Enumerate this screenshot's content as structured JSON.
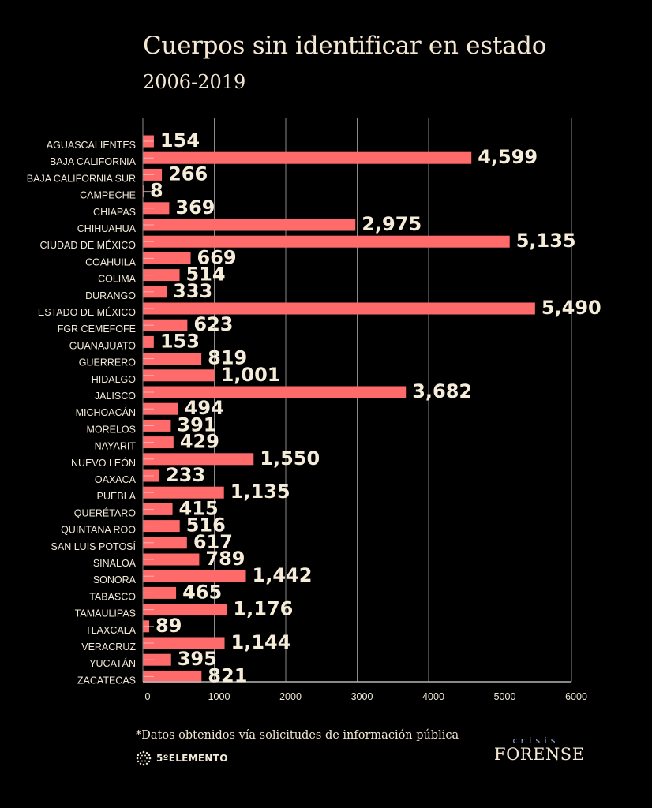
{
  "header": {
    "title": "Cuerpos sin identificar en estado",
    "subtitle": "2006-2019"
  },
  "footer": {
    "footnote": "*Datos obtenidos vía solicitudes de información pública",
    "logo_left": "5ºELEMENTO",
    "logo_left_icon": "dot-sphere-icon",
    "logo_right_small": "crisis",
    "logo_right_big": "FORENSE"
  },
  "colors": {
    "background": "#000000",
    "bar": "#ff6b6b",
    "text": "#f4e8d2",
    "grid": "#8a8a8a"
  },
  "chart_data": {
    "type": "bar",
    "orientation": "horizontal",
    "title": "Cuerpos sin identificar en estado",
    "subtitle": "2006-2019",
    "xlabel": "",
    "ylabel": "",
    "xlim": [
      0,
      6000
    ],
    "xticks": [
      0,
      1000,
      2000,
      3000,
      4000,
      5000,
      6000
    ],
    "xtick_labels": [
      "0",
      "1000",
      "2000",
      "3000",
      "4000",
      "5000",
      "6000"
    ],
    "grid": true,
    "legend": "none",
    "categories": [
      "AGUASCALIENTES",
      "BAJA CALIFORNIA",
      "BAJA CALIFORNIA SUR",
      "CAMPECHE",
      "CHIAPAS",
      "CHIHUAHUA",
      "CIUDAD DE MÉXICO",
      "COAHUILA",
      "COLIMA",
      "DURANGO",
      "ESTADO DE MÉXICO",
      "FGR CEMEFOFE",
      "GUANAJUATO",
      "GUERRERO",
      "HIDALGO",
      "JALISCO",
      "MICHOACÁN",
      "MORELOS",
      "NAYARIT",
      "NUEVO LEÓN",
      "OAXACA",
      "PUEBLA",
      "QUERÉTARO",
      "QUINTANA ROO",
      "SAN LUIS POTOSÍ",
      "SINALOA",
      "SONORA",
      "TABASCO",
      "TAMAULIPAS",
      "TLAXCALA",
      "VERACRUZ",
      "YUCATÁN",
      "ZACATECAS"
    ],
    "values": [
      154,
      4599,
      266,
      8,
      369,
      2975,
      5135,
      669,
      514,
      333,
      5490,
      623,
      153,
      819,
      1001,
      3682,
      494,
      391,
      429,
      1550,
      233,
      1135,
      415,
      516,
      617,
      789,
      1442,
      465,
      1176,
      89,
      1144,
      395,
      821
    ],
    "value_labels": [
      "154",
      "4,599",
      "266",
      "8",
      "369",
      "2,975",
      "5,135",
      "669",
      "514",
      "333",
      "5,490",
      "623",
      "153",
      "819",
      "1,001",
      "3,682",
      "494",
      "391",
      "429",
      "1,550",
      "233",
      "1,135",
      "415",
      "516",
      "617",
      "789",
      "1,442",
      "465",
      "1,176",
      "89",
      "1,144",
      "395",
      "821"
    ]
  }
}
